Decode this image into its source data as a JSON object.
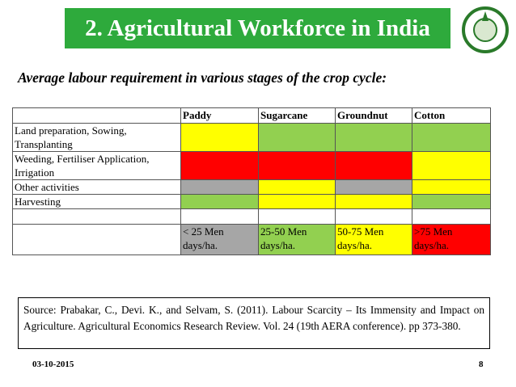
{
  "header": {
    "title": "2. Agricultural Workforce in India"
  },
  "subtitle": "Average labour requirement in various stages of the crop cycle:",
  "table": {
    "columns": [
      "Paddy",
      "Sugarcane",
      "Groundnut",
      "Cotton"
    ],
    "rows": [
      {
        "label": "Land preparation, Sowing, Transplanting",
        "colors": [
          "#ffff00",
          "#92d050",
          "#92d050",
          "#92d050"
        ]
      },
      {
        "label": "Weeding, Fertiliser Application, Irrigation",
        "colors": [
          "#ff0000",
          "#ff0000",
          "#ff0000",
          "#ffff00"
        ]
      },
      {
        "label": "Other activities",
        "colors": [
          "#a6a6a6",
          "#ffff00",
          "#a6a6a6",
          "#ffff00"
        ]
      },
      {
        "label": "Harvesting",
        "colors": [
          "#92d050",
          "#ffff00",
          "#ffff00",
          "#92d050"
        ]
      }
    ],
    "legend": [
      {
        "label": "< 25 Men days/ha.",
        "color": "#a6a6a6"
      },
      {
        "label": "25-50 Men days/ha.",
        "color": "#92d050"
      },
      {
        "label": "50-75 Men days/ha.",
        "color": "#ffff00"
      },
      {
        "label": ">75 Men days/ha.",
        "color": "#ff0000"
      }
    ]
  },
  "source": "Source: Prabakar, C., Devi. K., and Selvam, S. (2011). Labour Scarcity – Its Immensity and Impact on Agriculture. Agricultural Economics Research Review. Vol. 24 (19th AERA conference). pp 373-380.",
  "footer": {
    "date": "03-10-2015",
    "page": "8"
  }
}
